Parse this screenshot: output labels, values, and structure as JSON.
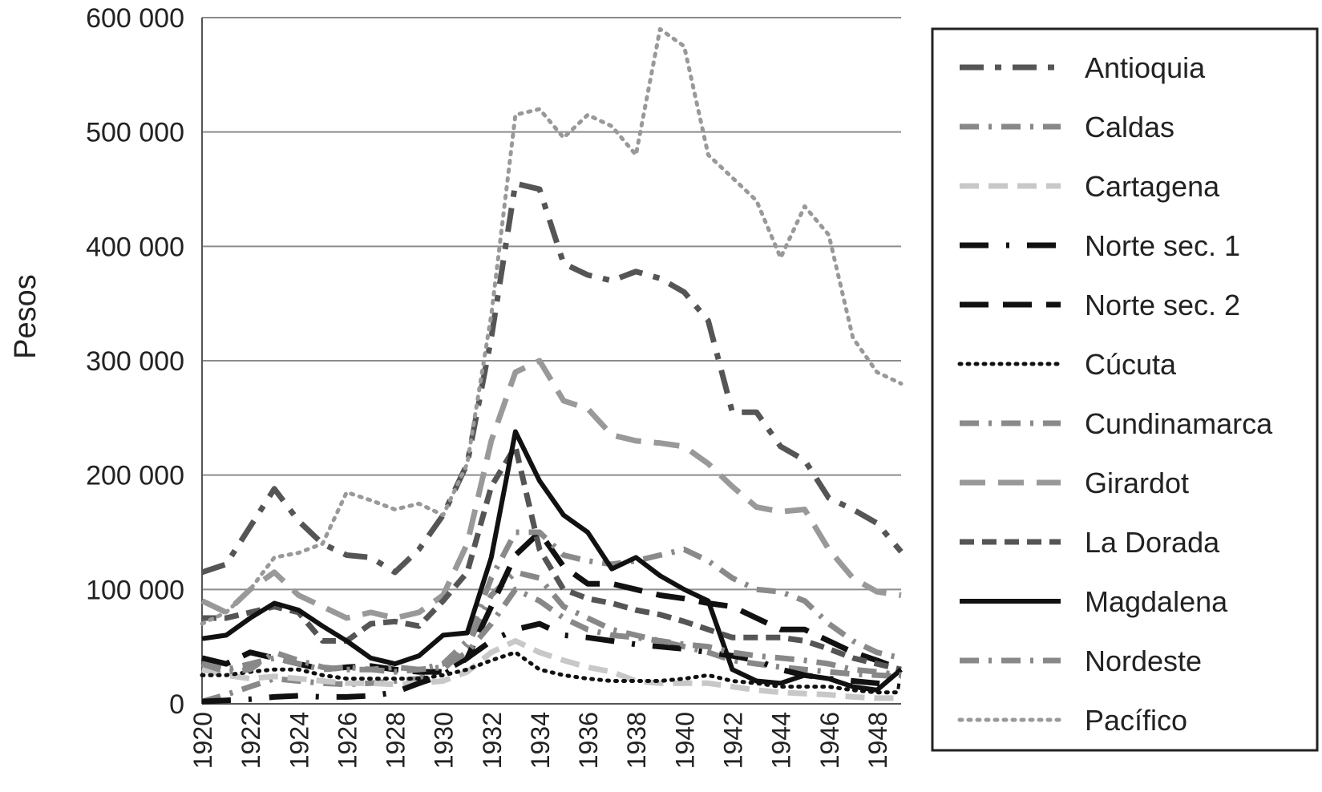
{
  "chart_data": {
    "type": "line",
    "title": "",
    "xlabel": "",
    "ylabel": "Pesos",
    "ylim": [
      0,
      600000
    ],
    "xlim": [
      1920,
      1949
    ],
    "grid": "horizontal",
    "legend_position": "right",
    "y_ticks": [
      {
        "value": 0,
        "label": "0"
      },
      {
        "value": 100000,
        "label": "100 000"
      },
      {
        "value": 200000,
        "label": "200 000"
      },
      {
        "value": 300000,
        "label": "300 000"
      },
      {
        "value": 400000,
        "label": "400 000"
      },
      {
        "value": 500000,
        "label": "500 000"
      },
      {
        "value": 600000,
        "label": "600 000"
      }
    ],
    "x_ticks": [
      "1920",
      "1922",
      "1924",
      "1926",
      "1928",
      "1930",
      "1932",
      "1934",
      "1936",
      "1938",
      "1940",
      "1942",
      "1944",
      "1946",
      "1948"
    ],
    "x": [
      1920,
      1921,
      1922,
      1923,
      1924,
      1925,
      1926,
      1927,
      1928,
      1929,
      1930,
      1931,
      1932,
      1933,
      1934,
      1935,
      1936,
      1937,
      1938,
      1939,
      1940,
      1941,
      1942,
      1943,
      1944,
      1945,
      1946,
      1947,
      1948,
      1949
    ],
    "series": [
      {
        "name": "Antioquia",
        "color": "#555555",
        "dash": "30,14,8,14",
        "width": 7,
        "values": [
          115000,
          122000,
          155000,
          188000,
          160000,
          140000,
          130000,
          128000,
          115000,
          135000,
          165000,
          210000,
          320000,
          455000,
          450000,
          385000,
          375000,
          370000,
          378000,
          372000,
          360000,
          335000,
          255000,
          255000,
          225000,
          213000,
          180000,
          170000,
          158000,
          133000
        ]
      },
      {
        "name": "Caldas",
        "color": "#888888",
        "dash": "24,12,4,12",
        "width": 7,
        "values": [
          2000,
          8000,
          15000,
          22000,
          20000,
          18000,
          17000,
          18000,
          20000,
          22000,
          30000,
          50000,
          95000,
          115000,
          110000,
          85000,
          75000,
          65000,
          60000,
          55000,
          50000,
          45000,
          38000,
          35000,
          32000,
          30000,
          28000,
          26000,
          25000,
          24000
        ]
      },
      {
        "name": "Cartagena",
        "color": "#c8c8c8",
        "dash": "24,12",
        "width": 7,
        "values": [
          30000,
          25000,
          22000,
          24000,
          22000,
          20000,
          18000,
          18000,
          17000,
          18000,
          20000,
          28000,
          45000,
          55000,
          45000,
          38000,
          32000,
          28000,
          20000,
          18000,
          18000,
          18000,
          15000,
          12000,
          10000,
          9000,
          8000,
          6000,
          5000,
          5000
        ]
      },
      {
        "name": "Norte sec. 1",
        "color": "#111111",
        "dash": "36,22,4,22",
        "width": 7,
        "values": [
          2000,
          3000,
          4000,
          6000,
          7000,
          6000,
          6000,
          7000,
          10000,
          18000,
          25000,
          40000,
          55000,
          65000,
          70000,
          60000,
          58000,
          55000,
          52000,
          50000,
          48000,
          45000,
          42000,
          38000,
          30000,
          25000,
          22000,
          20000,
          18000,
          15000
        ]
      },
      {
        "name": "Norte sec. 2",
        "color": "#111111",
        "dash": "36,18",
        "width": 7,
        "values": [
          40000,
          35000,
          45000,
          40000,
          35000,
          30000,
          32000,
          33000,
          30000,
          28000,
          28000,
          40000,
          85000,
          130000,
          150000,
          120000,
          105000,
          105000,
          100000,
          95000,
          92000,
          88000,
          85000,
          75000,
          65000,
          65000,
          55000,
          45000,
          38000,
          30000
        ]
      },
      {
        "name": "Cúcuta",
        "color": "#111111",
        "dash": "2,8",
        "width": 5,
        "values": [
          25000,
          25000,
          28000,
          30000,
          30000,
          25000,
          22000,
          22000,
          22000,
          22000,
          25000,
          30000,
          38000,
          45000,
          30000,
          25000,
          22000,
          20000,
          20000,
          20000,
          22000,
          25000,
          20000,
          18000,
          15000,
          15000,
          15000,
          12000,
          10000,
          10000
        ]
      },
      {
        "name": "Cundinamarca",
        "color": "#8a8a8a",
        "dash": "24,12,4,12",
        "width": 7,
        "values": [
          35000,
          28000,
          30000,
          45000,
          38000,
          32000,
          30000,
          30000,
          32000,
          30000,
          35000,
          55000,
          110000,
          150000,
          150000,
          130000,
          125000,
          122000,
          125000,
          130000,
          135000,
          125000,
          110000,
          100000,
          98000,
          90000,
          70000,
          55000,
          45000,
          40000
        ]
      },
      {
        "name": "Girardot",
        "color": "#999999",
        "dash": "32,16",
        "width": 7,
        "values": [
          90000,
          80000,
          100000,
          115000,
          95000,
          85000,
          75000,
          80000,
          75000,
          80000,
          95000,
          140000,
          230000,
          290000,
          300000,
          265000,
          258000,
          235000,
          230000,
          228000,
          225000,
          210000,
          190000,
          172000,
          168000,
          170000,
          135000,
          110000,
          98000,
          95000
        ]
      },
      {
        "name": "La Dorada",
        "color": "#555555",
        "dash": "18,10",
        "width": 7,
        "values": [
          75000,
          75000,
          80000,
          85000,
          80000,
          55000,
          55000,
          70000,
          72000,
          68000,
          90000,
          115000,
          190000,
          225000,
          135000,
          100000,
          92000,
          88000,
          82000,
          78000,
          72000,
          65000,
          58000,
          58000,
          58000,
          55000,
          48000,
          40000,
          35000,
          30000
        ]
      },
      {
        "name": "Magdalena",
        "color": "#111111",
        "dash": "",
        "width": 6,
        "values": [
          57000,
          60000,
          75000,
          88000,
          82000,
          68000,
          55000,
          40000,
          35000,
          42000,
          60000,
          62000,
          128000,
          238000,
          195000,
          165000,
          150000,
          118000,
          128000,
          112000,
          100000,
          90000,
          30000,
          20000,
          18000,
          25000,
          22000,
          15000,
          12000,
          30000
        ]
      },
      {
        "name": "Nordeste",
        "color": "#888888",
        "dash": "24,12,4,12",
        "width": 7,
        "values": [
          35000,
          30000,
          35000,
          40000,
          35000,
          30000,
          32000,
          30000,
          28000,
          30000,
          32000,
          45000,
          70000,
          100000,
          90000,
          75000,
          65000,
          60000,
          58000,
          55000,
          52000,
          50000,
          45000,
          42000,
          40000,
          38000,
          35000,
          30000,
          28000,
          25000
        ]
      },
      {
        "name": "Pacífico",
        "color": "#999999",
        "dash": "3,8",
        "width": 5,
        "values": [
          70000,
          80000,
          100000,
          128000,
          132000,
          140000,
          185000,
          178000,
          170000,
          175000,
          165000,
          210000,
          340000,
          515000,
          520000,
          495000,
          515000,
          505000,
          480000,
          590000,
          575000,
          480000,
          460000,
          440000,
          390000,
          435000,
          410000,
          320000,
          290000,
          280000
        ]
      }
    ]
  }
}
